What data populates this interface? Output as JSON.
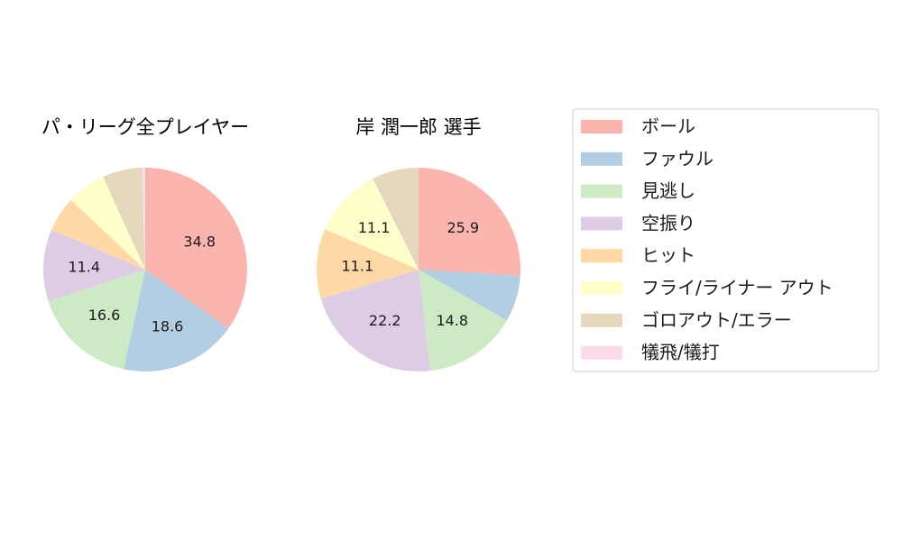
{
  "chart_data": {
    "type": "pie",
    "categories": [
      "ボール",
      "ファウル",
      "見逃し",
      "空振り",
      "ヒット",
      "フライ/ライナー アウト",
      "ゴロアウト/エラー",
      "犠飛/犠打"
    ],
    "colors": [
      "#fbb4ae",
      "#b3cde3",
      "#ccebc5",
      "#decbe4",
      "#fed9a6",
      "#ffffcc",
      "#e5d8bd",
      "#fddaec"
    ],
    "legend_placement": "right",
    "pies": [
      {
        "title": "パ・リーグ全プレイヤー",
        "values": [
          34.8,
          18.6,
          16.6,
          11.4,
          5.6,
          6.2,
          6.3,
          0.5
        ],
        "labels": [
          "34.8",
          "18.6",
          "16.6",
          "11.4",
          "",
          "",
          "",
          ""
        ]
      },
      {
        "title": "岸 潤一郎  選手",
        "values": [
          25.9,
          7.4,
          14.8,
          22.2,
          11.1,
          11.1,
          7.4,
          0
        ],
        "labels": [
          "25.9",
          "",
          "14.8",
          "22.2",
          "11.1",
          "11.1",
          "",
          ""
        ]
      }
    ]
  }
}
